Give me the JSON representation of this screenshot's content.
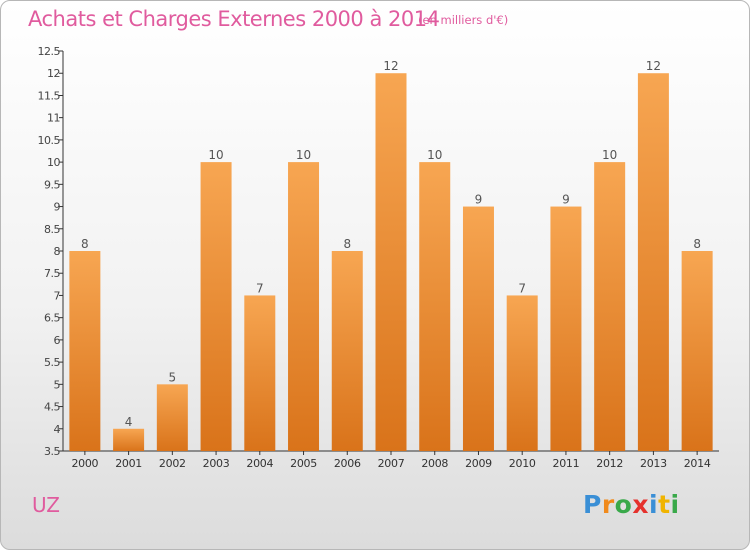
{
  "title": "Achats et Charges Externes 2000 à 2014",
  "subtitle": "(en milliers d'€)",
  "commune": "UZ",
  "logo": {
    "text": "Proxiti",
    "letters": [
      {
        "ch": "P",
        "color": "#3a8fd6"
      },
      {
        "ch": "r",
        "color": "#f08a1c"
      },
      {
        "ch": "o",
        "color": "#39a94a"
      },
      {
        "ch": "x",
        "color": "#e5322d"
      },
      {
        "ch": "i",
        "color": "#3a8fd6"
      },
      {
        "ch": "t",
        "color": "#f0b400"
      },
      {
        "ch": "i",
        "color": "#39a94a"
      }
    ]
  },
  "chart_data": {
    "type": "bar",
    "title": "Achats et Charges Externes 2000 à 2014",
    "subtitle": "(en milliers d'€)",
    "categories": [
      "2000",
      "2001",
      "2002",
      "2003",
      "2004",
      "2005",
      "2006",
      "2007",
      "2008",
      "2009",
      "2010",
      "2011",
      "2012",
      "2013",
      "2014"
    ],
    "values": [
      8,
      4,
      5,
      10,
      7,
      10,
      8,
      12,
      10,
      9,
      7,
      9,
      10,
      12,
      8
    ],
    "ylim": [
      3.5,
      12.5
    ],
    "yticks": [
      "3.5",
      "4",
      "4.5",
      "5",
      "5.5",
      "6",
      "6.5",
      "7",
      "7.5",
      "8",
      "8.5",
      "9",
      "9.5",
      "10",
      "10.5",
      "11",
      "11.5",
      "12",
      "12.5"
    ],
    "grid": false,
    "bar_color_top": "#f7a652",
    "bar_color_bottom": "#d9731a",
    "label_color": "#555555"
  }
}
